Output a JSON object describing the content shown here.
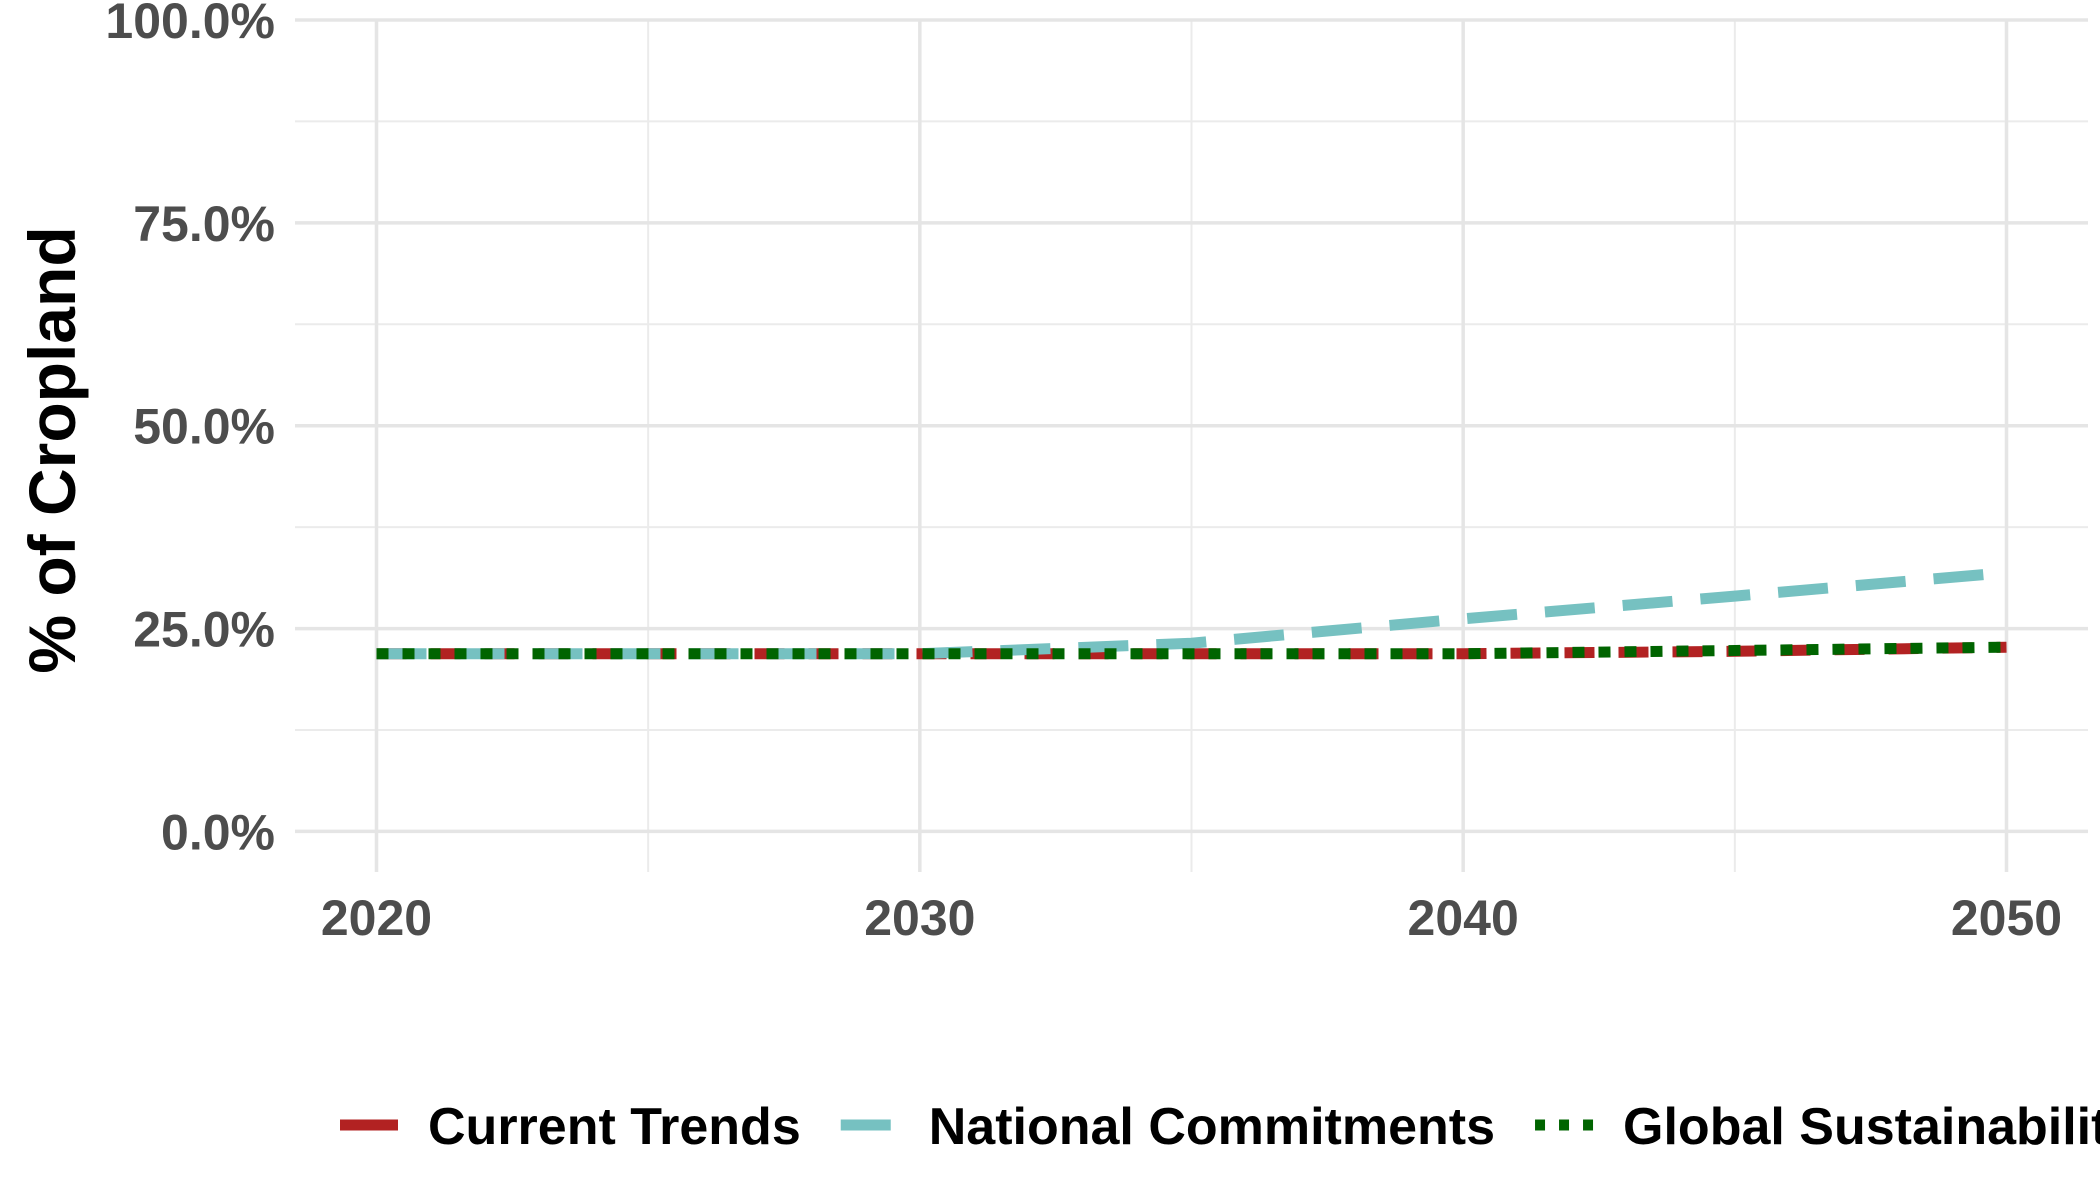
{
  "chart_data": {
    "type": "line",
    "title": "",
    "xlabel": "",
    "ylabel": "% of Cropland",
    "xlim": [
      2018.5,
      2051.5
    ],
    "ylim": [
      -0.05,
      1.0
    ],
    "x_ticks": [
      2020,
      2030,
      2040,
      2050
    ],
    "x_tick_labels": [
      "2020",
      "2030",
      "2040",
      "2050"
    ],
    "y_ticks": [
      0,
      0.25,
      0.5,
      0.75,
      1.0
    ],
    "y_tick_labels": [
      "0.0%",
      "25.0%",
      "50.0%",
      "75.0%",
      "100.0%"
    ],
    "grid": true,
    "legend_position": "bottom",
    "x": [
      2020,
      2025,
      2030,
      2035,
      2040,
      2045,
      2050
    ],
    "series": [
      {
        "name": "Current Trends",
        "color": "#b22222",
        "dash": "dashed",
        "values": [
          0.219,
          0.219,
          0.219,
          0.219,
          0.219,
          0.222,
          0.227
        ]
      },
      {
        "name": "National Commitments",
        "color": "#76c1c1",
        "dash": "longdash",
        "values": [
          0.219,
          0.219,
          0.219,
          0.232,
          0.262,
          0.29,
          0.319
        ]
      },
      {
        "name": "Global Sustainability",
        "color": "#006400",
        "dash": "dotted",
        "values": [
          0.219,
          0.219,
          0.219,
          0.219,
          0.219,
          0.223,
          0.227
        ]
      }
    ]
  }
}
